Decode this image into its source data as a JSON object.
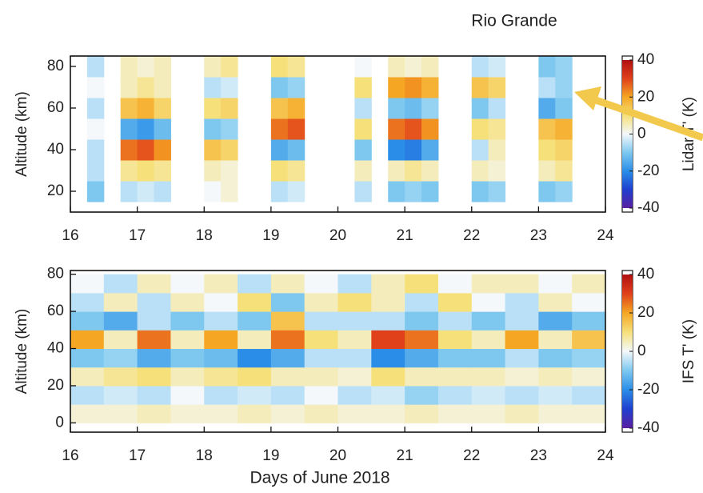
{
  "chart_data": [
    {
      "type": "heatmap",
      "title": "Rio Grande",
      "ylabel": "Altitude (km)",
      "x_edges": [
        16,
        16.25,
        16.5,
        16.75,
        17,
        17.25,
        17.5,
        17.75,
        18,
        18.25,
        18.5,
        18.75,
        19,
        19.25,
        19.5,
        19.75,
        20,
        20.25,
        20.5,
        20.75,
        21,
        21.25,
        21.5,
        21.75,
        22,
        22.25,
        22.5,
        22.75,
        23,
        23.25,
        23.5,
        23.75,
        24
      ],
      "y_edges": [
        15,
        25,
        35,
        45,
        55,
        65,
        75,
        85
      ],
      "values": [
        [
          null,
          -10,
          null,
          -5,
          -3,
          -5,
          null,
          null,
          0,
          3,
          null,
          null,
          -5,
          -3,
          null,
          null,
          null,
          -5,
          null,
          -10,
          -8,
          -10,
          null,
          null,
          -10,
          -8,
          null,
          null,
          -10,
          -8,
          null,
          null
        ],
        [
          null,
          -5,
          null,
          8,
          10,
          8,
          null,
          null,
          5,
          3,
          null,
          null,
          10,
          8,
          null,
          null,
          null,
          5,
          null,
          5,
          8,
          5,
          null,
          null,
          5,
          3,
          null,
          null,
          5,
          8,
          null,
          null
        ],
        [
          null,
          -5,
          null,
          25,
          28,
          22,
          null,
          null,
          15,
          12,
          null,
          null,
          -15,
          -12,
          null,
          null,
          null,
          -10,
          null,
          -20,
          -22,
          -15,
          null,
          null,
          -5,
          5,
          null,
          null,
          10,
          12,
          null,
          null
        ],
        [
          null,
          0,
          null,
          -15,
          -18,
          -12,
          null,
          null,
          -10,
          -8,
          null,
          null,
          25,
          28,
          null,
          null,
          null,
          10,
          null,
          25,
          28,
          22,
          null,
          null,
          10,
          8,
          null,
          null,
          15,
          18,
          null,
          null
        ],
        [
          null,
          -5,
          null,
          15,
          18,
          12,
          null,
          null,
          10,
          12,
          null,
          null,
          15,
          18,
          null,
          null,
          null,
          -5,
          null,
          -10,
          -12,
          -8,
          null,
          null,
          -10,
          -5,
          null,
          null,
          -15,
          -10,
          null,
          null
        ],
        [
          null,
          0,
          null,
          5,
          8,
          5,
          null,
          null,
          -5,
          -3,
          null,
          null,
          -10,
          -8,
          null,
          null,
          null,
          10,
          null,
          20,
          22,
          18,
          null,
          null,
          15,
          12,
          null,
          null,
          -5,
          -8,
          null,
          null
        ],
        [
          null,
          -5,
          null,
          5,
          3,
          5,
          null,
          null,
          5,
          8,
          null,
          null,
          10,
          8,
          null,
          null,
          null,
          0,
          null,
          5,
          3,
          5,
          null,
          null,
          -5,
          -3,
          null,
          null,
          -10,
          -8,
          null,
          null
        ]
      ],
      "xlim": [
        16,
        24
      ],
      "xticks": [
        16,
        17,
        18,
        19,
        20,
        21,
        22,
        23,
        24
      ],
      "ylim": [
        10,
        85
      ],
      "yticks": [
        20,
        40,
        60,
        80
      ],
      "colorbar": {
        "label": "Lidar T' (K)",
        "lim": [
          -40,
          40
        ],
        "ticks": [
          -40,
          -20,
          0,
          20,
          40
        ]
      }
    },
    {
      "type": "heatmap",
      "ylabel": "Altitude (km)",
      "xlabel": "Days of June 2018",
      "x_edges": [
        16,
        16.5,
        17,
        17.5,
        18,
        18.5,
        19,
        19.5,
        20,
        20.5,
        21,
        21.5,
        22,
        22.5,
        23,
        23.5,
        24
      ],
      "y_edges": [
        0,
        10,
        20,
        30,
        40,
        50,
        60,
        70,
        80
      ],
      "values": [
        [
          3,
          3,
          5,
          3,
          3,
          5,
          3,
          5,
          3,
          3,
          5,
          3,
          3,
          5,
          3,
          3
        ],
        [
          -5,
          -3,
          -5,
          0,
          -5,
          -3,
          -5,
          0,
          -5,
          -3,
          -8,
          -5,
          -3,
          -5,
          -3,
          -5
        ],
        [
          5,
          8,
          10,
          5,
          8,
          10,
          5,
          5,
          3,
          10,
          5,
          5,
          5,
          3,
          5,
          3
        ],
        [
          -10,
          -8,
          -15,
          -10,
          -12,
          -20,
          -15,
          -5,
          -5,
          -20,
          -15,
          -10,
          -10,
          -5,
          -10,
          -8
        ],
        [
          20,
          5,
          25,
          5,
          20,
          5,
          25,
          10,
          5,
          30,
          25,
          10,
          5,
          20,
          5,
          15
        ],
        [
          -10,
          -15,
          -5,
          -10,
          -5,
          -10,
          15,
          -5,
          -5,
          -5,
          -10,
          -5,
          -10,
          -5,
          -15,
          -10
        ],
        [
          -5,
          5,
          -5,
          5,
          0,
          10,
          -10,
          5,
          10,
          5,
          -5,
          10,
          0,
          -5,
          5,
          0
        ],
        [
          0,
          -5,
          5,
          0,
          5,
          -5,
          5,
          0,
          -5,
          5,
          10,
          0,
          5,
          5,
          0,
          5
        ]
      ],
      "xlim": [
        16,
        24
      ],
      "xticks": [
        16,
        17,
        18,
        19,
        20,
        21,
        22,
        23,
        24
      ],
      "ylim": [
        -5,
        82
      ],
      "yticks": [
        0,
        20,
        40,
        60,
        80
      ],
      "colorbar": {
        "label": "IFS T' (K)",
        "lim": [
          -40,
          40
        ],
        "ticks": [
          -40,
          -20,
          0,
          20,
          40
        ]
      }
    }
  ]
}
